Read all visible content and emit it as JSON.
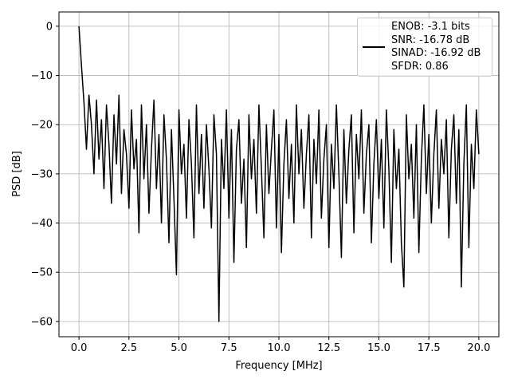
{
  "chart_data": {
    "type": "line",
    "xlabel": "Frequency [MHz]",
    "ylabel": "PSD [dB]",
    "xlim": [
      -1.0,
      21.0
    ],
    "ylim": [
      -63.1,
      2.9
    ],
    "xticks": [
      {
        "value": 0,
        "label": "0.0"
      },
      {
        "value": 2.5,
        "label": "2.5"
      },
      {
        "value": 5,
        "label": "5.0"
      },
      {
        "value": 7.5,
        "label": "7.5"
      },
      {
        "value": 10,
        "label": "10.0"
      },
      {
        "value": 12.5,
        "label": "12.5"
      },
      {
        "value": 15,
        "label": "15.0"
      },
      {
        "value": 17.5,
        "label": "17.5"
      },
      {
        "value": 20,
        "label": "20.0"
      }
    ],
    "yticks": [
      0,
      {
        "value": -10,
        "label": "−10"
      },
      {
        "value": -20,
        "label": "−20"
      },
      {
        "value": -30,
        "label": "−30"
      },
      {
        "value": -40,
        "label": "−40"
      },
      {
        "value": -50,
        "label": "−50"
      },
      {
        "value": -60,
        "label": "−60"
      }
    ],
    "grid": true,
    "legend": "upper right",
    "x": [
      0,
      0.125,
      0.25,
      0.375,
      0.5,
      0.625,
      0.75,
      0.875,
      1,
      1.125,
      1.25,
      1.375,
      1.5,
      1.625,
      1.75,
      1.875,
      2,
      2.125,
      2.25,
      2.375,
      2.5,
      2.625,
      2.75,
      2.875,
      3,
      3.125,
      3.25,
      3.375,
      3.5,
      3.625,
      3.75,
      3.875,
      4,
      4.125,
      4.25,
      4.375,
      4.5,
      4.625,
      4.75,
      4.875,
      5,
      5.125,
      5.25,
      5.375,
      5.5,
      5.625,
      5.75,
      5.875,
      6,
      6.125,
      6.25,
      6.375,
      6.5,
      6.625,
      6.75,
      6.875,
      7,
      7.125,
      7.25,
      7.375,
      7.5,
      7.625,
      7.75,
      7.875,
      8,
      8.125,
      8.25,
      8.375,
      8.5,
      8.625,
      8.75,
      8.875,
      9,
      9.125,
      9.25,
      9.375,
      9.5,
      9.625,
      9.75,
      9.875,
      10,
      10.125,
      10.25,
      10.375,
      10.5,
      10.625,
      10.75,
      10.875,
      11,
      11.125,
      11.25,
      11.375,
      11.5,
      11.625,
      11.75,
      11.875,
      12,
      12.125,
      12.25,
      12.375,
      12.5,
      12.625,
      12.75,
      12.875,
      13,
      13.125,
      13.25,
      13.375,
      13.5,
      13.625,
      13.75,
      13.875,
      14,
      14.125,
      14.25,
      14.375,
      14.5,
      14.625,
      14.75,
      14.875,
      15,
      15.125,
      15.25,
      15.375,
      15.5,
      15.625,
      15.75,
      15.875,
      16,
      16.125,
      16.25,
      16.375,
      16.5,
      16.625,
      16.75,
      16.875,
      17,
      17.125,
      17.25,
      17.375,
      17.5,
      17.625,
      17.75,
      17.875,
      18,
      18.125,
      18.25,
      18.375,
      18.5,
      18.625,
      18.75,
      18.875,
      19,
      19.125,
      19.25,
      19.375,
      19.5,
      19.625,
      19.75,
      19.875,
      20
    ],
    "series": [
      {
        "name": "ENOB: -3.1 bits\nSNR: -16.78 dB\nSINAD: -16.92 dB\nSFDR: 0.86",
        "color": "#000000",
        "values": [
          0,
          -8,
          -15.5,
          -25,
          -14,
          -20,
          -30,
          -15,
          -27,
          -19,
          -33,
          -16,
          -24,
          -36,
          -18,
          -28,
          -14,
          -34,
          -21,
          -26,
          -37,
          -17,
          -29,
          -23,
          -42,
          -16,
          -31,
          -20,
          -38,
          -25,
          -15,
          -33,
          -22,
          -40,
          -18,
          -27,
          -44,
          -21,
          -35,
          -50.5,
          -17,
          -30,
          -24,
          -39,
          -19,
          -28,
          -43,
          -16,
          -34,
          -22,
          -37,
          -20,
          -29,
          -41,
          -18,
          -26,
          -60,
          -23,
          -33,
          -17,
          -39,
          -21,
          -48,
          -25,
          -19,
          -36,
          -27,
          -45,
          -18,
          -31,
          -23,
          -38,
          -16,
          -29,
          -43,
          -20,
          -34,
          -25,
          -17,
          -41,
          -22,
          -46,
          -28,
          -19,
          -35,
          -24,
          -40,
          -16,
          -30,
          -21,
          -37,
          -26,
          -18,
          -43,
          -23,
          -32,
          -17,
          -39,
          -27,
          -20,
          -45,
          -24,
          -33,
          -16,
          -30,
          -47,
          -21,
          -36,
          -25,
          -18,
          -42,
          -22,
          -31,
          -17,
          -38,
          -26,
          -20,
          -44,
          -28,
          -19,
          -35,
          -23,
          -41,
          -17,
          -29,
          -48,
          -21,
          -33,
          -25,
          -44,
          -53,
          -18,
          -31,
          -24,
          -39,
          -20,
          -46,
          -27,
          -16,
          -34,
          -22,
          -40,
          -26,
          -17,
          -37,
          -23,
          -30,
          -19,
          -43,
          -25,
          -18,
          -36,
          -21,
          -53,
          -28,
          -16,
          -45,
          -24,
          -33,
          -17,
          -26
        ]
      }
    ]
  }
}
